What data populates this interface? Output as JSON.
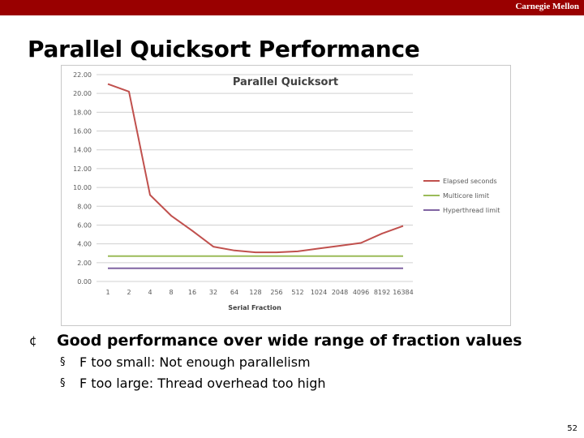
{
  "header": {
    "brand": "Carnegie Mellon"
  },
  "slide": {
    "title": "Parallel Quicksort Performance",
    "page_number": "52"
  },
  "bullets": {
    "main": "Good performance over wide range of fraction values",
    "main_marker": "¢",
    "sub_marker": "§",
    "sub": [
      "F too small: Not enough parallelism",
      "F too large: Thread overhead too high"
    ]
  },
  "chart_data": {
    "type": "line",
    "title": "Parallel Quicksort",
    "xlabel": "Serial Fraction",
    "ylabel": "",
    "categories": [
      "1",
      "2",
      "4",
      "8",
      "16",
      "32",
      "64",
      "128",
      "256",
      "512",
      "1024",
      "2048",
      "4096",
      "8192",
      "16384"
    ],
    "ylim": [
      0,
      22
    ],
    "yticks": [
      "0.00",
      "2.00",
      "4.00",
      "6.00",
      "8.00",
      "10.00",
      "12.00",
      "14.00",
      "16.00",
      "18.00",
      "20.00",
      "22.00"
    ],
    "grid": true,
    "legend": "right",
    "series": [
      {
        "name": "Elapsed seconds",
        "color": "#c0504d",
        "values": [
          21.0,
          20.2,
          9.2,
          7.0,
          5.4,
          3.7,
          3.3,
          3.1,
          3.1,
          3.2,
          3.5,
          3.8,
          4.1,
          5.1,
          5.9
        ]
      },
      {
        "name": "Multicore limit",
        "color": "#9bbb59",
        "values": [
          2.7,
          2.7,
          2.7,
          2.7,
          2.7,
          2.7,
          2.7,
          2.7,
          2.7,
          2.7,
          2.7,
          2.7,
          2.7,
          2.7,
          2.7
        ]
      },
      {
        "name": "Hyperthread limit",
        "color": "#8064a2",
        "values": [
          1.4,
          1.4,
          1.4,
          1.4,
          1.4,
          1.4,
          1.4,
          1.4,
          1.4,
          1.4,
          1.4,
          1.4,
          1.4,
          1.4,
          1.4
        ]
      }
    ]
  }
}
